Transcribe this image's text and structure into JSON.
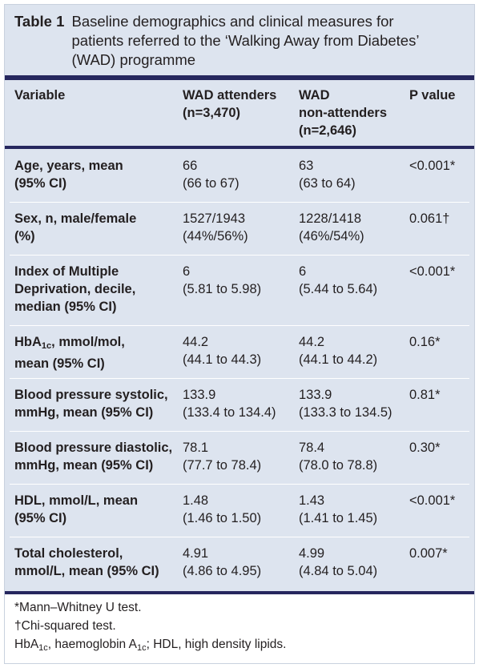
{
  "caption": {
    "table_number": "Table 1",
    "title": "Baseline demographics and clinical measures for patients referred to the ‘Walking Away from Diabetes’ (WAD) programme"
  },
  "header": {
    "variable": "Variable",
    "wad_attenders": [
      "WAD attenders",
      "(n=3,470)"
    ],
    "wad_non_attenders": [
      "WAD",
      "non-attenders",
      "(n=2,646)"
    ],
    "p_value": "P value"
  },
  "rows": [
    {
      "variable": [
        "Age, years, mean",
        "(95% CI)"
      ],
      "attenders": [
        "66",
        "(66 to 67)"
      ],
      "non_attenders": [
        "63",
        "(63 to 64)"
      ],
      "p": "<0.001*"
    },
    {
      "variable": [
        "Sex, n, male/female",
        "(%)"
      ],
      "attenders": [
        "1527/1943",
        "(44%/56%)"
      ],
      "non_attenders": [
        "1228/1418",
        "(46%/54%)"
      ],
      "p": "0.061†"
    },
    {
      "variable": [
        "Index of Multiple",
        "Deprivation, decile,",
        "median (95% CI)"
      ],
      "attenders": [
        "6",
        "(5.81 to 5.98)"
      ],
      "non_attenders": [
        "6",
        "(5.44 to 5.64)"
      ],
      "p": "<0.001*"
    },
    {
      "variable_hba1c": {
        "pre": "HbA",
        "sub": "1c",
        "post": ", mmol/mol,",
        "line2": "mean (95% CI)"
      },
      "attenders": [
        "44.2",
        "(44.1 to 44.3)"
      ],
      "non_attenders": [
        "44.2",
        "(44.1 to 44.2)"
      ],
      "p": "0.16*"
    },
    {
      "variable": [
        "Blood pressure systolic,",
        "mmHg, mean (95% CI)"
      ],
      "attenders": [
        "133.9",
        "(133.4 to 134.4)"
      ],
      "non_attenders": [
        "133.9",
        "(133.3 to 134.5)"
      ],
      "p": "0.81*"
    },
    {
      "variable": [
        "Blood pressure diastolic,",
        "mmHg, mean (95% CI)"
      ],
      "attenders": [
        "78.1",
        "(77.7 to 78.4)"
      ],
      "non_attenders": [
        "78.4",
        "(78.0 to 78.8)"
      ],
      "p": "0.30*"
    },
    {
      "variable": [
        "HDL, mmol/L, mean",
        "(95% CI)"
      ],
      "attenders": [
        "1.48",
        "(1.46 to 1.50)"
      ],
      "non_attenders": [
        "1.43",
        "(1.41 to 1.45)"
      ],
      "p": "<0.001*"
    },
    {
      "variable": [
        "Total cholesterol,",
        "mmol/L, mean (95% CI)"
      ],
      "attenders": [
        "4.91",
        "(4.86 to 4.95)"
      ],
      "non_attenders": [
        "4.99",
        "(4.84 to 5.04)"
      ],
      "p": "0.007*"
    }
  ],
  "footnotes": {
    "mann_whitney": "*Mann–Whitney U test.",
    "chi_squared": "†Chi-squared test.",
    "abbrev_a": "HbA",
    "abbrev_sub1": "1c",
    "abbrev_b": ", haemoglobin A",
    "abbrev_sub2": "1c",
    "abbrev_c": "; HDL, high density lipids."
  },
  "colors": {
    "band": "#dde4ef",
    "rule": "#26275e",
    "text": "#231f20"
  }
}
